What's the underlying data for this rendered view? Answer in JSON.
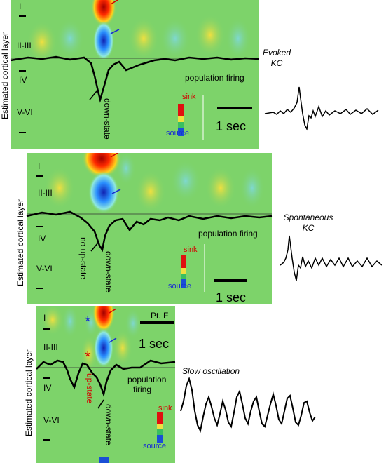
{
  "y_axis_label": "Estimated cortical layer",
  "layers": [
    "I",
    "II-III",
    "IV",
    "V-VI"
  ],
  "legend": {
    "sink": "sink",
    "source": "source"
  },
  "scale_label": "1 sec",
  "population_firing": "population firing",
  "down_state": "down-state",
  "panel_a": {
    "trace_label_1": "Evoked",
    "trace_label_2": "KC"
  },
  "panel_b": {
    "trace_label_1": "Spontaneous",
    "trace_label_2": "KC",
    "no_up_state": "no up-state"
  },
  "panel_c": {
    "trace_label": "Slow oscillation",
    "patient": "Pt. F",
    "up_state": "up-state",
    "population_firing_1": "population",
    "population_firing_2": "firing",
    "star": "*"
  },
  "colors": {
    "sink": "#e01010",
    "source": "#1a4fd6",
    "background": "#7dd36a",
    "trace": "#000000"
  }
}
